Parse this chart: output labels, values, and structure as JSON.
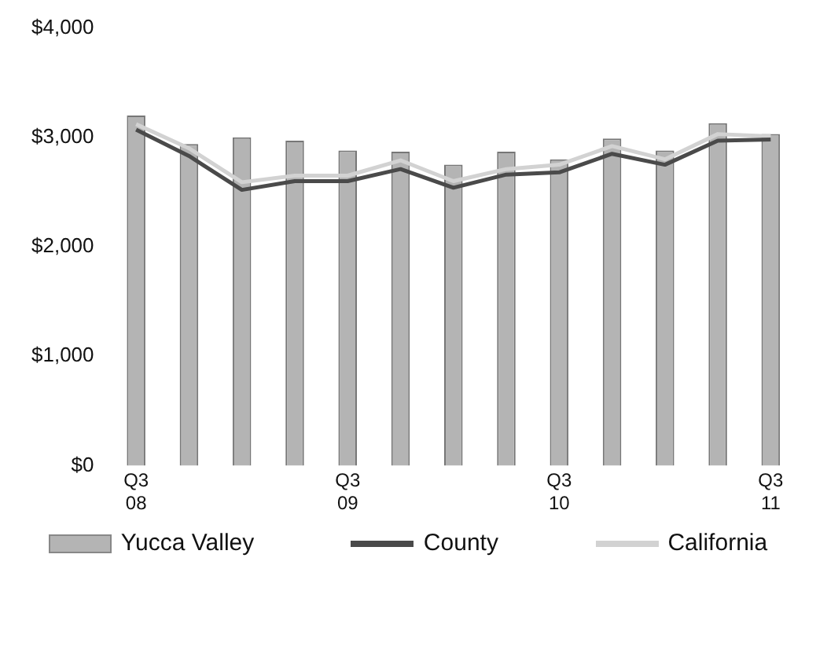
{
  "chart_data": {
    "type": "bar",
    "categories": [
      "Q3\n08",
      null,
      null,
      null,
      "Q3\n09",
      null,
      null,
      null,
      "Q3\n10",
      null,
      null,
      null,
      "Q3\n11"
    ],
    "series": [
      {
        "name": "Yucca Valley",
        "color": "#b4b4b4",
        "values": [
          3200,
          2940,
          3000,
          2970,
          2880,
          2870,
          2750,
          2870,
          2800,
          2990,
          2880,
          3130,
          3030
        ]
      },
      {
        "name": "County",
        "type": "line",
        "color": "#4a4a4a",
        "values": [
          3070,
          2830,
          2520,
          2600,
          2600,
          2710,
          2540,
          2660,
          2680,
          2850,
          2750,
          2970,
          2980
        ]
      },
      {
        "name": "California",
        "type": "line",
        "color": "#d2d2d2",
        "values": [
          3120,
          2900,
          2590,
          2650,
          2650,
          2790,
          2600,
          2710,
          2750,
          2920,
          2800,
          3030,
          3010
        ]
      }
    ],
    "ylim": [
      0,
      4000
    ],
    "yticks": [
      {
        "value": 0,
        "label": "$0"
      },
      {
        "value": 1000,
        "label": "$1,000"
      },
      {
        "value": 2000,
        "label": "$2,000"
      },
      {
        "value": 3000,
        "label": "$3,000"
      },
      {
        "value": 4000,
        "label": "$4,000"
      }
    ],
    "grid": false,
    "legend": "bottom",
    "marker": "none",
    "line_style": "solid"
  }
}
